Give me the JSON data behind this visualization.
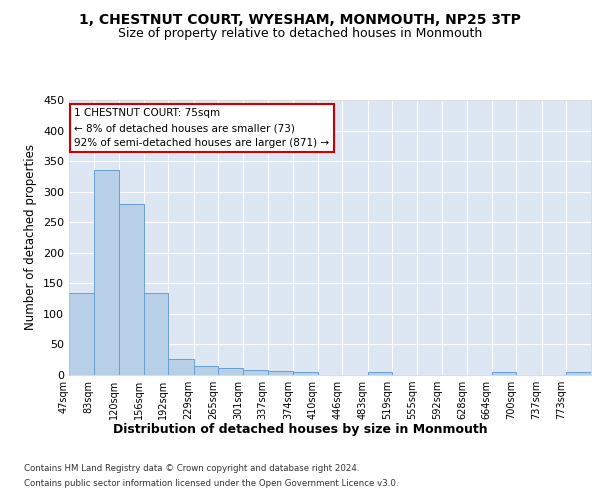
{
  "title1": "1, CHESTNUT COURT, WYESHAM, MONMOUTH, NP25 3TP",
  "title2": "Size of property relative to detached houses in Monmouth",
  "xlabel": "Distribution of detached houses by size in Monmouth",
  "ylabel": "Number of detached properties",
  "bar_values": [
    135,
    335,
    280,
    135,
    27,
    15,
    12,
    8,
    6,
    5,
    0,
    0,
    5,
    0,
    0,
    0,
    0,
    5,
    0,
    0,
    5
  ],
  "bin_edges": [
    47,
    83,
    120,
    156,
    192,
    229,
    265,
    301,
    337,
    374,
    410,
    446,
    483,
    519,
    555,
    592,
    628,
    664,
    700,
    737,
    773,
    809
  ],
  "bar_color": "#b8cfe8",
  "bar_edge_color": "#6a9fd4",
  "annotation_text": "1 CHESTNUT COURT: 75sqm\n← 8% of detached houses are smaller (73)\n92% of semi-detached houses are larger (871) →",
  "annotation_box_color": "#ffffff",
  "annotation_border_color": "#cc0000",
  "ylim": [
    0,
    450
  ],
  "yticks": [
    0,
    50,
    100,
    150,
    200,
    250,
    300,
    350,
    400,
    450
  ],
  "bg_color": "#dde6f3",
  "plot_bg_color": "#dde6f3",
  "grid_color": "#ffffff",
  "footer1": "Contains HM Land Registry data © Crown copyright and database right 2024.",
  "footer2": "Contains public sector information licensed under the Open Government Licence v3.0."
}
